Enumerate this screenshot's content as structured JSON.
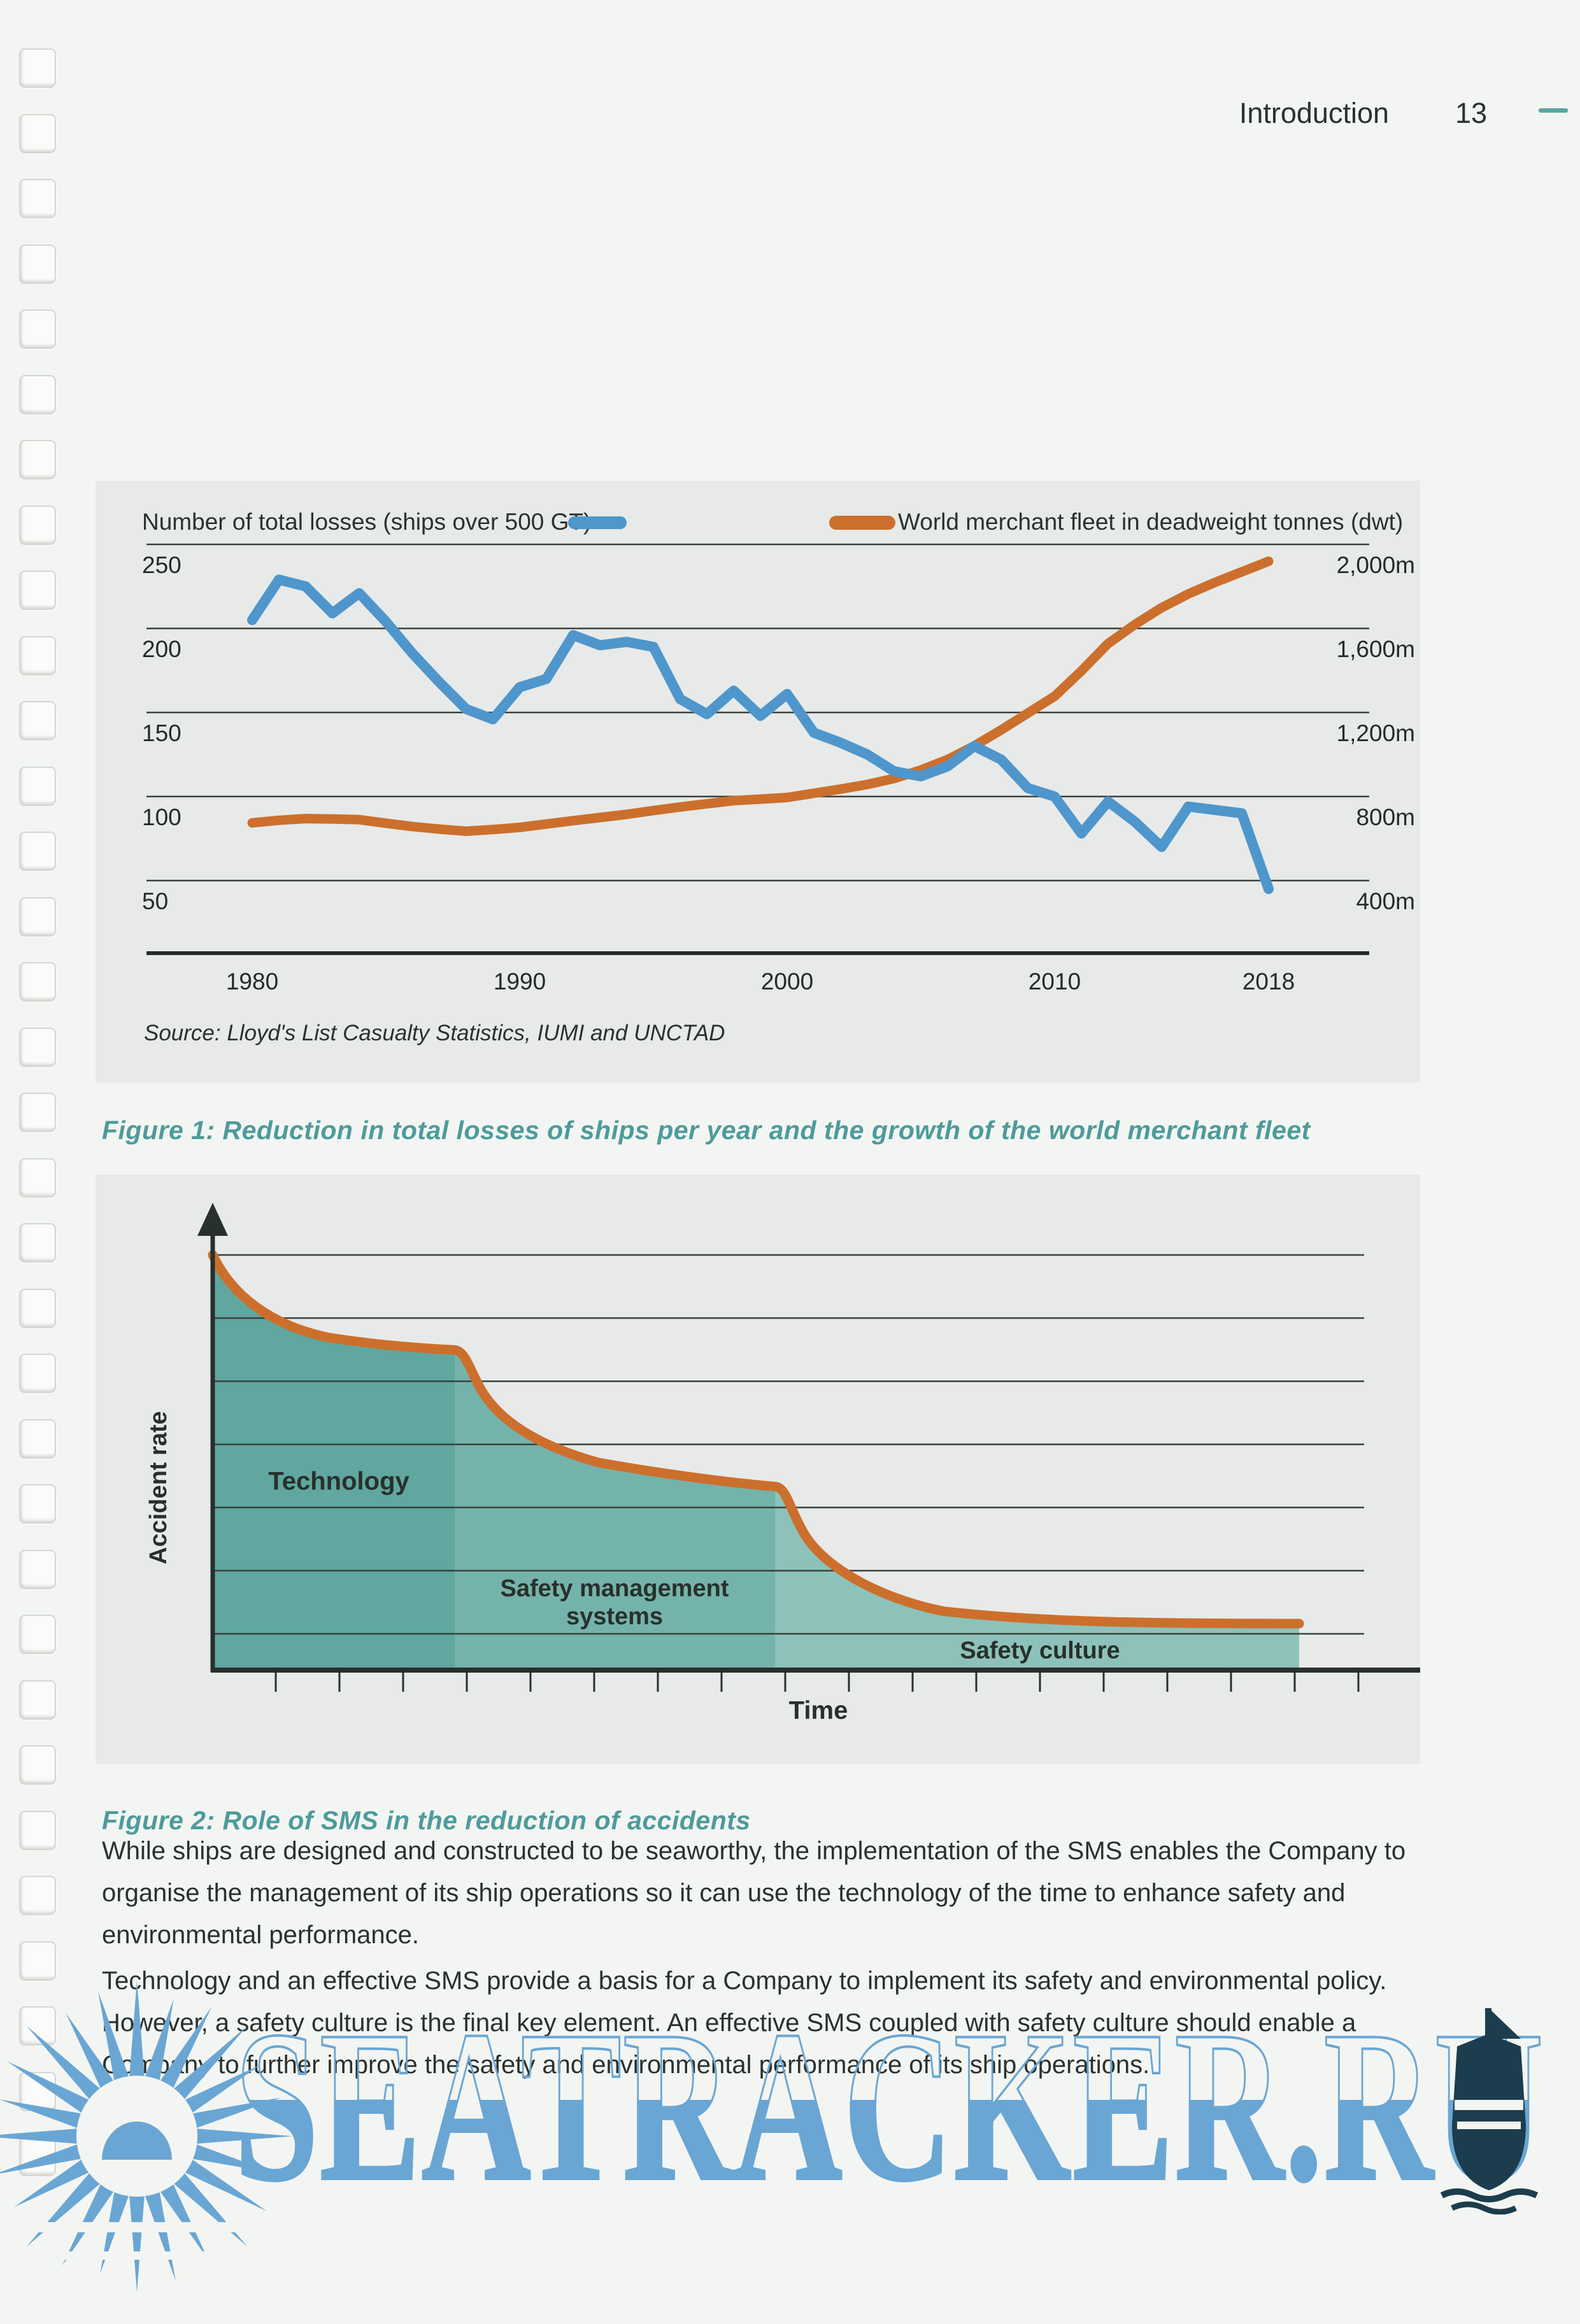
{
  "page": {
    "background": "#f3f5f2",
    "header": {
      "section": "Introduction",
      "page_number": "13"
    }
  },
  "figure1": {
    "legend": [
      {
        "label": "Number of total losses (ships over 500 GT)",
        "color": "#4e96cc"
      },
      {
        "label": "World merchant fleet in deadweight tonnes (dwt)",
        "color": "#cc6f2d"
      }
    ],
    "source": "Source: Lloyd's List Casualty Statistics, IUMI and UNCTAD",
    "caption": "Figure 1: Reduction in total losses of ships per year and the growth of the world merchant fleet"
  },
  "figure2": {
    "caption": "Figure 2: Role of SMS in the reduction of accidents",
    "labels": {
      "ylabel": "Accident rate",
      "xlabel": "Time",
      "region1": "Technology",
      "region2_line1": "Safety management",
      "region2_line2": "systems",
      "region3": "Safety culture"
    }
  },
  "paragraphs": [
    "While ships are designed and constructed to be seaworthy, the implementation of the SMS enables the Company to organise the management of its ship operations so it can use the technology of the time to enhance safety and environmental performance.",
    "Technology and an effective SMS provide a basis for a Company to implement its safety and environmental policy. However, a safety culture is the final key element. An effective SMS coupled with safety culture should enable a Company to further improve the safety and environmental performance of its ship operations."
  ],
  "watermark": {
    "text": "SEATRACKER.RU",
    "color": "#6aa6d4"
  },
  "chart_data": [
    {
      "id": "figure1",
      "type": "line",
      "title": "Reduction in total losses of ships per year and the growth of the world merchant fleet",
      "x": [
        1980,
        1981,
        1982,
        1983,
        1984,
        1985,
        1986,
        1987,
        1988,
        1989,
        1990,
        1991,
        1992,
        1993,
        1994,
        1995,
        1996,
        1997,
        1998,
        1999,
        2000,
        2001,
        2002,
        2003,
        2004,
        2005,
        2006,
        2007,
        2008,
        2009,
        2010,
        2011,
        2012,
        2013,
        2014,
        2015,
        2016,
        2017,
        2018
      ],
      "x_ticks": [
        1980,
        1990,
        2000,
        2010,
        2018
      ],
      "left_axis": {
        "label": "Number of total losses (ships over 500 GT)",
        "ticks": [
          250,
          200,
          150,
          100,
          50
        ],
        "range": [
          25,
          250
        ]
      },
      "right_axis": {
        "label": "World merchant fleet in deadweight tonnes (dwt)",
        "ticks": [
          "2,000m",
          "1,600m",
          "1,200m",
          "800m",
          "400m"
        ],
        "tick_values": [
          2000,
          1600,
          1200,
          800,
          400
        ],
        "range": [
          200,
          2000
        ]
      },
      "series": [
        {
          "name": "Number of total losses (ships over 500 GT)",
          "axis": "left",
          "color": "#4e96cc",
          "values": [
            205,
            229,
            225,
            209,
            221,
            204,
            185,
            168,
            152,
            146,
            165,
            170,
            196,
            190,
            192,
            189,
            158,
            149,
            163,
            148,
            161,
            138,
            132,
            125,
            115,
            112,
            118,
            130,
            122,
            105,
            100,
            78,
            97,
            85,
            70,
            94,
            92,
            90,
            45
          ]
        },
        {
          "name": "World merchant fleet in deadweight tonnes (dwt)",
          "axis": "right",
          "color": "#cc6f2d",
          "values": [
            680,
            692,
            700,
            698,
            695,
            678,
            662,
            650,
            640,
            648,
            658,
            674,
            690,
            705,
            720,
            738,
            755,
            770,
            785,
            792,
            800,
            820,
            840,
            862,
            890,
            930,
            980,
            1045,
            1120,
            1200,
            1280,
            1400,
            1530,
            1620,
            1700,
            1765,
            1820,
            1870,
            1920
          ]
        }
      ],
      "source": "Source: Lloyd's List Casualty Statistics, IUMI and UNCTAD",
      "grid": "horizontal",
      "legend_position": "top"
    },
    {
      "id": "figure2",
      "type": "area",
      "title": "Role of SMS in the reduction of accidents",
      "xlabel": "Time",
      "ylabel": "Accident rate",
      "regions": [
        {
          "label": "Technology",
          "x_span": [
            0,
            0.223
          ],
          "fill": "#5fa79f"
        },
        {
          "label": "Safety management systems",
          "x_span": [
            0.223,
            0.518
          ],
          "fill": "#74b3ab"
        },
        {
          "label": "Safety culture",
          "x_span": [
            0.518,
            1.0
          ],
          "fill": "#8dc2ba"
        }
      ],
      "curve": {
        "color": "#cc6f2d",
        "start": [
          0,
          0
        ],
        "segments": [
          [
            0.018,
            0.1,
            0.055,
            0.17,
            0.105,
            0.198
          ],
          [
            0.145,
            0.215,
            0.185,
            0.224,
            0.223,
            0.229
          ],
          [
            0.232,
            0.232,
            0.236,
            0.27,
            0.245,
            0.315
          ],
          [
            0.262,
            0.4,
            0.3,
            0.46,
            0.355,
            0.5
          ],
          [
            0.42,
            0.53,
            0.47,
            0.547,
            0.518,
            0.558
          ],
          [
            0.528,
            0.561,
            0.531,
            0.61,
            0.542,
            0.66
          ],
          [
            0.558,
            0.745,
            0.61,
            0.825,
            0.672,
            0.858
          ],
          [
            0.76,
            0.884,
            0.86,
            0.888,
            1.0,
            0.888
          ]
        ]
      },
      "gridlines": 7,
      "axis_arrows": true,
      "note": "Conceptual diagram: accident rate declines over time in three phases as technology, safety management systems and safety culture are introduced"
    }
  ]
}
